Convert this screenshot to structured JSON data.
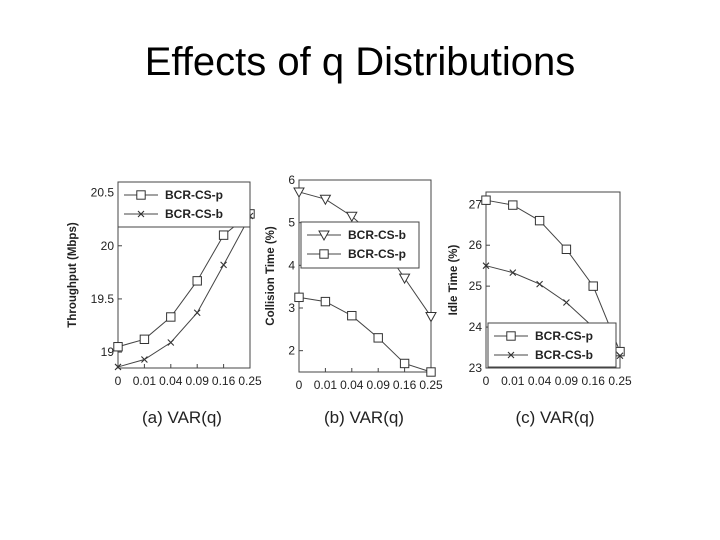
{
  "slide": {
    "title": "Effects of q Distributions"
  },
  "chart_data": [
    {
      "type": "line",
      "x": [
        "0",
        "0.01",
        "0.04",
        "0.09",
        "0.16",
        "0.25"
      ],
      "x_ticks": [
        "0",
        "0.01",
        "0.04",
        "0.09",
        "0.16",
        "0.25"
      ],
      "ylabel": "Throughput (Mbps)",
      "xlabel": "(a) VAR(q)",
      "ylim": [
        18.85,
        20.6
      ],
      "y_ticks": [
        19,
        19.5,
        20,
        20.5
      ],
      "y_tick_labels": [
        "19",
        "19.5",
        "20",
        "20.5"
      ],
      "legend_position": "top",
      "series": [
        {
          "name": "BCR-CS-p",
          "marker": "square",
          "values": [
            19.05,
            19.12,
            19.33,
            19.67,
            20.1,
            20.3
          ]
        },
        {
          "name": "BCR-CS-b",
          "marker": "x",
          "values": [
            18.86,
            18.93,
            19.09,
            19.37,
            19.82,
            20.28
          ]
        }
      ]
    },
    {
      "type": "line",
      "x": [
        "0",
        "0.01",
        "0.04",
        "0.09",
        "0.16",
        "0.25"
      ],
      "x_ticks": [
        "0",
        "0.01",
        "0.04",
        "0.09",
        "0.16",
        "0.25"
      ],
      "ylabel": "Collision Time (%)",
      "xlabel": "(b) VAR(q)",
      "ylim": [
        1.5,
        6.0
      ],
      "y_ticks": [
        2,
        3,
        4,
        5,
        6
      ],
      "y_tick_labels": [
        "2",
        "3",
        "4",
        "5",
        "6"
      ],
      "legend_position": "middle",
      "series": [
        {
          "name": "BCR-CS-b",
          "marker": "triangle-down",
          "values": [
            5.72,
            5.55,
            5.15,
            4.6,
            3.7,
            2.8
          ]
        },
        {
          "name": "BCR-CS-p",
          "marker": "square",
          "values": [
            3.25,
            3.15,
            2.82,
            2.3,
            1.7,
            1.5
          ]
        }
      ]
    },
    {
      "type": "line",
      "x": [
        "0",
        "0.01",
        "0.04",
        "0.09",
        "0.16",
        "0.25"
      ],
      "x_ticks": [
        "0",
        "0.01",
        "0.04",
        "0.09",
        "0.16",
        "0.25"
      ],
      "ylabel": "Idle Time (%)",
      "xlabel": "(c) VAR(q)",
      "ylim": [
        23,
        27.3
      ],
      "y_ticks": [
        23,
        24,
        25,
        26,
        27
      ],
      "y_tick_labels": [
        "23",
        "24",
        "25",
        "26",
        "27"
      ],
      "legend_position": "bottom",
      "series": [
        {
          "name": "BCR-CS-p",
          "marker": "square",
          "values": [
            27.1,
            26.98,
            26.6,
            25.9,
            25.0,
            23.4
          ]
        },
        {
          "name": "BCR-CS-b",
          "marker": "x",
          "values": [
            25.5,
            25.33,
            25.05,
            24.6,
            24.0,
            23.3
          ]
        }
      ]
    }
  ]
}
